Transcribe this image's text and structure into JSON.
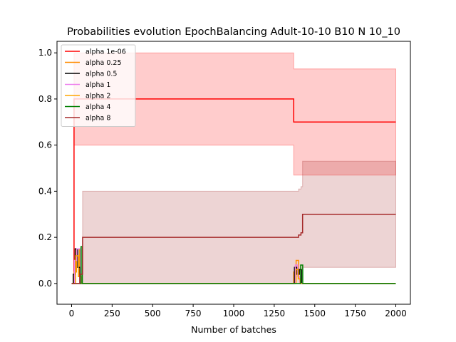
{
  "chart_data": {
    "type": "line",
    "title": "Probabilities evolution EpochBalancing Adult-10-10 B10 N 10_10",
    "xlabel": "Number of batches",
    "ylabel": "",
    "xlim": [
      -90,
      2090
    ],
    "ylim": [
      -0.09,
      1.05
    ],
    "xticks": [
      0,
      250,
      500,
      750,
      1000,
      1250,
      1500,
      1750,
      2000
    ],
    "yticks": [
      0.0,
      0.2,
      0.4,
      0.6,
      0.8,
      1.0
    ],
    "grid": false,
    "legend_position": "top-left",
    "series": [
      {
        "name": "alpha 1e-06",
        "color": "#ff0000",
        "band_color": "#ff0000",
        "band_opacity": 0.2,
        "x": [
          0,
          15,
          15,
          1370,
          1370,
          2000
        ],
        "y": [
          0.0,
          0.0,
          0.8,
          0.8,
          0.7,
          0.7
        ],
        "band_x": [
          15,
          1370,
          1370,
          2000
        ],
        "band_lower": [
          0.6,
          0.6,
          0.47,
          0.47
        ],
        "band_upper": [
          1.0,
          1.0,
          0.93,
          0.93
        ]
      },
      {
        "name": "alpha 0.25",
        "color": "#ff8c00",
        "x": [
          0,
          15,
          15,
          30,
          30,
          48,
          48,
          58,
          58,
          1370,
          1370,
          1385,
          1385,
          1400,
          1400,
          1412,
          1412,
          2000
        ],
        "y": [
          0,
          0,
          0.05,
          0.05,
          0.15,
          0.15,
          0.03,
          0.03,
          0,
          0,
          0.05,
          0.05,
          0.1,
          0.1,
          0.02,
          0.02,
          0,
          0
        ]
      },
      {
        "name": "alpha 0.5",
        "color": "#000000",
        "x": [
          0,
          10,
          10,
          22,
          22,
          38,
          38,
          52,
          52,
          1375,
          1375,
          1390,
          1390,
          1405,
          1405,
          1418,
          1418,
          2000
        ],
        "y": [
          0,
          0,
          0.04,
          0.04,
          0.15,
          0.15,
          0.07,
          0.07,
          0,
          0,
          0.07,
          0.07,
          0.04,
          0.04,
          0.06,
          0.06,
          0,
          0
        ]
      },
      {
        "name": "alpha 1",
        "color": "#ee82ee",
        "x": [
          0,
          18,
          18,
          32,
          32,
          55,
          55,
          1380,
          1380,
          1395,
          1395,
          1408,
          1408,
          2000
        ],
        "y": [
          0,
          0,
          0.1,
          0.1,
          0.15,
          0.15,
          0,
          0,
          0.08,
          0.08,
          0.03,
          0.03,
          0,
          0
        ]
      },
      {
        "name": "alpha 2",
        "color": "#ffa500",
        "x": [
          0,
          25,
          25,
          42,
          42,
          60,
          60,
          1385,
          1385,
          1398,
          1398,
          1410,
          1410,
          2000
        ],
        "y": [
          0,
          0,
          0.12,
          0.12,
          0.03,
          0.03,
          0,
          0,
          0.06,
          0.06,
          0.02,
          0.02,
          0,
          0
        ]
      },
      {
        "name": "alpha 4",
        "color": "#008000",
        "x": [
          0,
          58,
          58,
          66,
          66,
          1413,
          1413,
          1426,
          1426,
          2000
        ],
        "y": [
          0,
          0,
          0.16,
          0.16,
          0,
          0,
          0.08,
          0.08,
          0,
          0
        ]
      },
      {
        "name": "alpha 8",
        "color": "#a52a2a",
        "band_color": "#a52a2a",
        "band_opacity": 0.2,
        "x": [
          0,
          50,
          50,
          68,
          68,
          1400,
          1400,
          1415,
          1415,
          1425,
          1425,
          2000
        ],
        "y": [
          0,
          0,
          0.04,
          0.04,
          0.2,
          0.2,
          0.21,
          0.21,
          0.22,
          0.22,
          0.3,
          0.3
        ],
        "band_x": [
          68,
          1400,
          1400,
          1415,
          1415,
          1425,
          1425,
          2000
        ],
        "band_lower": [
          0.0,
          0.0,
          0.0,
          0.0,
          0.01,
          0.01,
          0.07,
          0.07
        ],
        "band_upper": [
          0.4,
          0.4,
          0.41,
          0.41,
          0.42,
          0.42,
          0.53,
          0.53
        ]
      }
    ]
  }
}
